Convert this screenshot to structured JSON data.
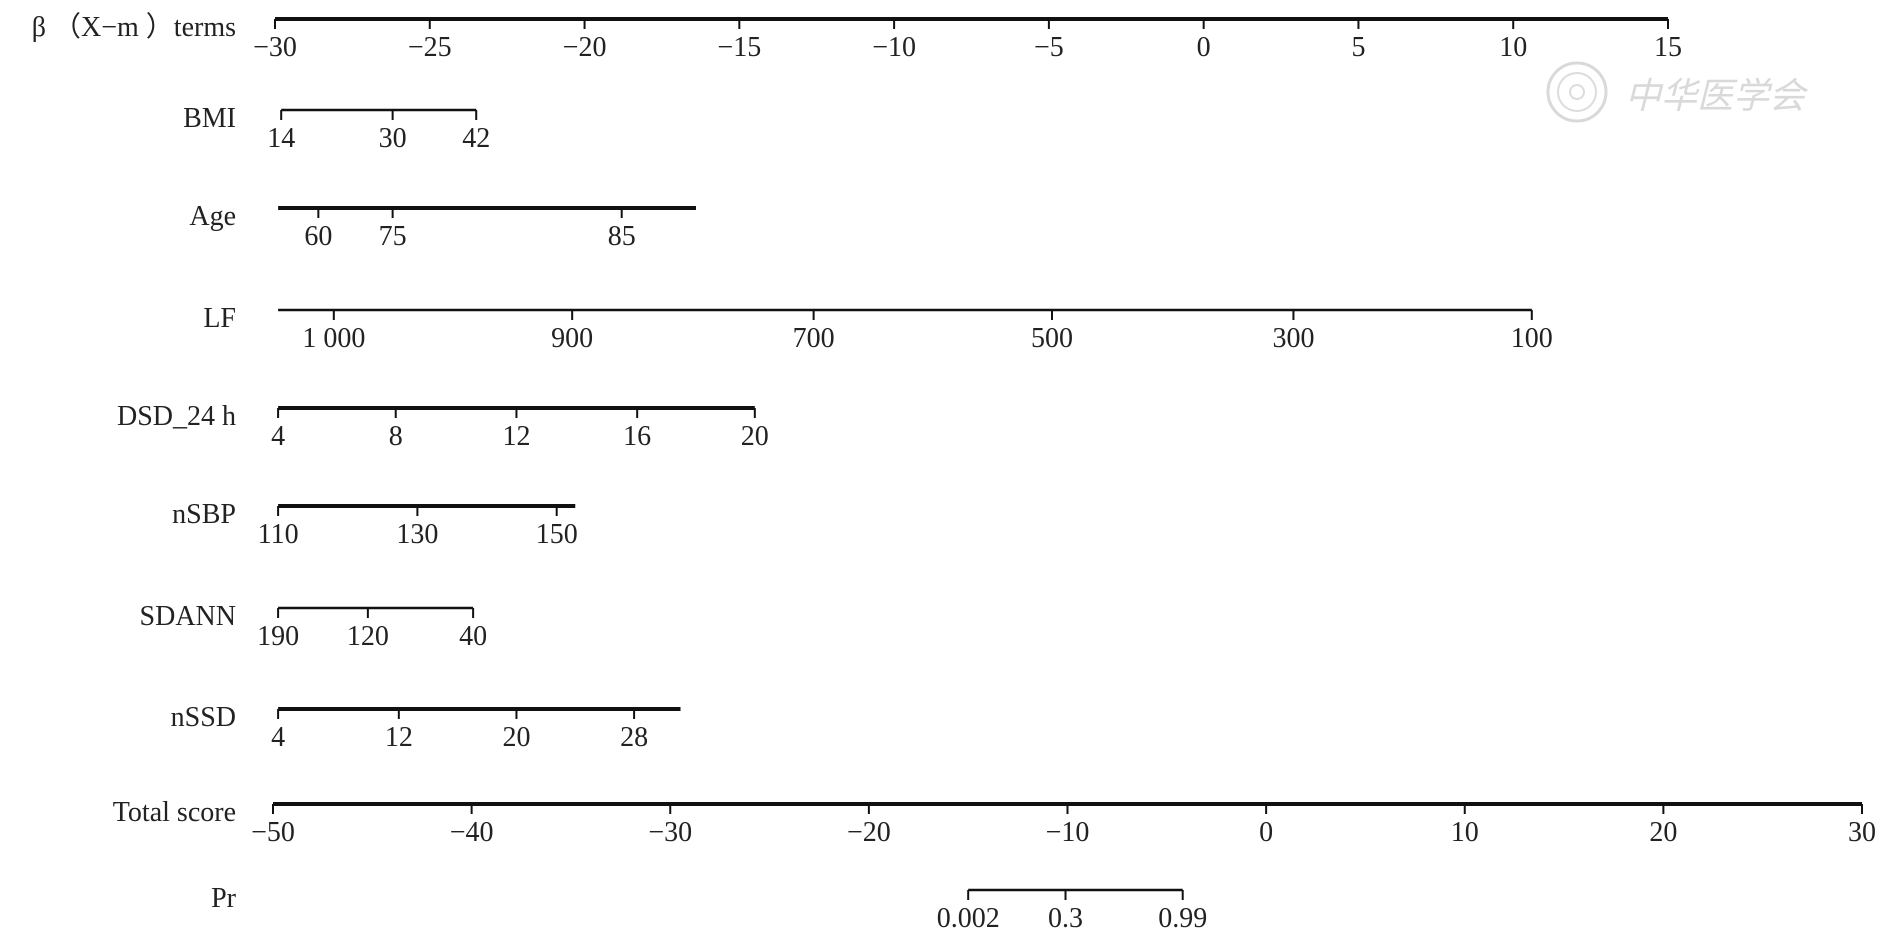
{
  "chart_data": {
    "type": "nomogram",
    "watermark": "中华医学会",
    "rows": [
      {
        "key": "beta",
        "label": "β （X−m ）terms",
        "ticks": [
          {
            "value": -30,
            "label": "−30"
          },
          {
            "value": -25,
            "label": "−25"
          },
          {
            "value": -20,
            "label": "−20"
          },
          {
            "value": -15,
            "label": "−15"
          },
          {
            "value": -10,
            "label": "−10"
          },
          {
            "value": -5,
            "label": "−5"
          },
          {
            "value": 0,
            "label": "0"
          },
          {
            "value": 5,
            "label": "5"
          },
          {
            "value": 10,
            "label": "10"
          },
          {
            "value": 15,
            "label": "15"
          }
        ],
        "range": [
          -30,
          15
        ]
      },
      {
        "key": "bmi",
        "label": "BMI",
        "ticks": [
          {
            "value": 14,
            "label": "14",
            "points": -29.8
          },
          {
            "value": 30,
            "label": "30",
            "points": -26.2
          },
          {
            "value": 42,
            "label": "42",
            "points": -23.5
          }
        ],
        "range_points": [
          -29.8,
          -23.5
        ]
      },
      {
        "key": "age",
        "label": "Age",
        "ticks": [
          {
            "value": 60,
            "label": "60",
            "points": -28.6
          },
          {
            "value": 75,
            "label": "75",
            "points": -26.2
          },
          {
            "value": 85,
            "label": "85",
            "points": -18.8
          }
        ],
        "range_points": [
          -29.9,
          -16.4
        ]
      },
      {
        "key": "lf",
        "label": "LF",
        "ticks": [
          {
            "value": 1000,
            "label": "1 000",
            "points": -28.1
          },
          {
            "value": 900,
            "label": "900",
            "points": -20.4
          },
          {
            "value": 700,
            "label": "700",
            "points": -12.6
          },
          {
            "value": 500,
            "label": "500",
            "points": -4.9
          },
          {
            "value": 300,
            "label": "300",
            "points": 2.9
          },
          {
            "value": 100,
            "label": "100",
            "points": 10.6
          }
        ],
        "range_points": [
          -29.9,
          10.6
        ]
      },
      {
        "key": "dsd24",
        "label": "DSD_24 h",
        "ticks": [
          {
            "value": 4,
            "label": "4",
            "points": -29.9
          },
          {
            "value": 8,
            "label": "8",
            "points": -26.1
          },
          {
            "value": 12,
            "label": "12",
            "points": -22.2
          },
          {
            "value": 16,
            "label": "16",
            "points": -18.3
          },
          {
            "value": 20,
            "label": "20",
            "points": -14.5
          }
        ],
        "range_points": [
          -29.9,
          -14.5
        ]
      },
      {
        "key": "nsbp",
        "label": "nSBP",
        "ticks": [
          {
            "value": 110,
            "label": "110",
            "points": -29.9
          },
          {
            "value": 130,
            "label": "130",
            "points": -25.4
          },
          {
            "value": 150,
            "label": "150",
            "points": -20.9
          }
        ],
        "range_points": [
          -29.9,
          -20.3
        ]
      },
      {
        "key": "sdann",
        "label": "SDANN",
        "ticks": [
          {
            "value": 190,
            "label": "190",
            "points": -29.9
          },
          {
            "value": 120,
            "label": "120",
            "points": -27.0
          },
          {
            "value": 40,
            "label": "40",
            "points": -23.6
          }
        ],
        "range_points": [
          -29.9,
          -23.6
        ]
      },
      {
        "key": "nssd",
        "label": "nSSD",
        "ticks": [
          {
            "value": 4,
            "label": "4",
            "points": -29.9
          },
          {
            "value": 12,
            "label": "12",
            "points": -26.0
          },
          {
            "value": 20,
            "label": "20",
            "points": -22.2
          },
          {
            "value": 28,
            "label": "28",
            "points": -18.4
          }
        ],
        "range_points": [
          -29.9,
          -16.9
        ]
      },
      {
        "key": "total",
        "label": "Total score",
        "ticks": [
          {
            "value": -50,
            "label": "−50"
          },
          {
            "value": -40,
            "label": "−40"
          },
          {
            "value": -30,
            "label": "−30"
          },
          {
            "value": -20,
            "label": "−20"
          },
          {
            "value": -10,
            "label": "−10"
          },
          {
            "value": 0,
            "label": "0"
          },
          {
            "value": 10,
            "label": "10"
          },
          {
            "value": 20,
            "label": "20"
          },
          {
            "value": 30,
            "label": "30"
          }
        ],
        "range": [
          -50,
          30
        ]
      },
      {
        "key": "pr",
        "label": "Pr",
        "ticks": [
          {
            "value": 0.002,
            "label": "0.002",
            "total": -15.0
          },
          {
            "value": 0.3,
            "label": "0.3",
            "total": -10.1
          },
          {
            "value": 0.99,
            "label": "0.99",
            "total": -4.2
          }
        ],
        "range_total": [
          -15.0,
          -4.2
        ]
      }
    ]
  }
}
